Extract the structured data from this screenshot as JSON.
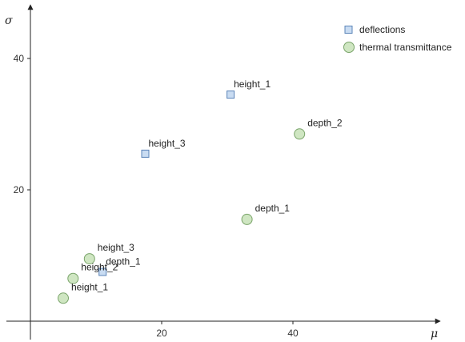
{
  "chart_data": {
    "type": "scatter",
    "title": "",
    "xlabel": "μ",
    "ylabel": "σ",
    "xlim": [
      -4,
      62
    ],
    "ylim": [
      -2,
      47
    ],
    "x_ticks": [
      20,
      40
    ],
    "y_ticks": [
      20,
      40
    ],
    "grid": false,
    "legend_position": "top-right",
    "series": [
      {
        "name": "deflections",
        "marker": "square",
        "color": "#c9dcf2",
        "edge_color": "#5b84b8",
        "points": [
          {
            "x": 30.5,
            "y": 34.5,
            "label": "height_1"
          },
          {
            "x": 17.5,
            "y": 25.5,
            "label": "height_3"
          },
          {
            "x": 11,
            "y": 7.5,
            "label": "depth_1"
          }
        ]
      },
      {
        "name": "thermal transmittance",
        "marker": "circle",
        "color": "#cfe6c2",
        "edge_color": "#7aa46a",
        "points": [
          {
            "x": 41,
            "y": 28.5,
            "label": "depth_2"
          },
          {
            "x": 33,
            "y": 15.5,
            "label": "depth_1"
          },
          {
            "x": 9,
            "y": 9.5,
            "label": "height_3"
          },
          {
            "x": 6.5,
            "y": 6.5,
            "label": "height_2"
          },
          {
            "x": 5,
            "y": 3.5,
            "label": "height_1"
          }
        ]
      }
    ]
  }
}
